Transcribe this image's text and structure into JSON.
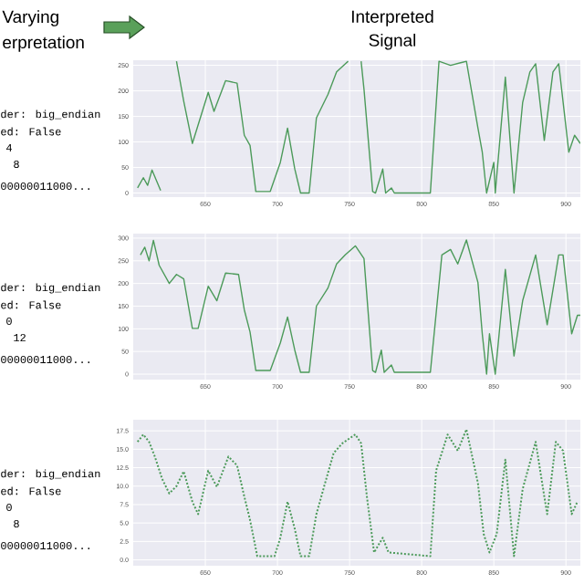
{
  "chart_data": [
    {
      "type": "line",
      "title": "Interpreted Signal",
      "annotations": [
        "Varying",
        "erpretation",
        "der: big_endian",
        "ed: False",
        "4",
        "8",
        "00000011000..."
      ],
      "x": [
        603,
        607,
        610,
        613,
        616,
        619,
        620,
        630,
        635,
        641,
        652,
        656,
        664,
        672,
        677,
        681,
        685,
        695,
        702,
        707,
        712,
        716,
        722,
        727,
        735,
        741,
        747,
        749,
        750,
        758,
        760,
        766,
        768,
        773,
        775,
        779,
        781,
        806,
        812,
        820,
        827,
        831,
        839,
        842,
        845,
        850,
        851,
        858,
        864,
        870,
        875,
        879,
        885,
        891,
        895,
        902,
        906,
        910
      ],
      "series": [
        {
          "color": "#4c9a5a",
          "values": [
            10,
            30,
            15,
            45,
            25,
            5,
            null,
            258,
            180,
            97,
            197,
            160,
            220,
            215,
            113,
            93,
            3,
            3,
            60,
            127,
            47,
            0,
            0,
            147,
            193,
            237,
            253,
            258,
            null,
            258,
            203,
            3,
            0,
            47,
            0,
            10,
            0,
            0,
            258,
            250,
            255,
            258,
            127,
            80,
            0,
            60,
            0,
            227,
            0,
            177,
            237,
            253,
            103,
            237,
            253,
            80,
            113,
            97
          ]
        }
      ],
      "xlim": [
        600,
        910
      ],
      "ylim": [
        -8,
        260
      ],
      "xticks": [
        650,
        700,
        750,
        800,
        850,
        900
      ],
      "yticks": [
        0,
        50,
        100,
        150,
        200,
        250
      ],
      "grid": true
    },
    {
      "type": "line",
      "annotations": [
        "der: big_endian",
        "ed: False",
        "0",
        "12",
        "00000011000..."
      ],
      "x": [
        605,
        608,
        611,
        614,
        618,
        625,
        630,
        635,
        641,
        645,
        652,
        658,
        664,
        673,
        677,
        681,
        685,
        695,
        702,
        707,
        712,
        716,
        722,
        727,
        735,
        741,
        747,
        754,
        760,
        766,
        768,
        772,
        774,
        779,
        781,
        806,
        814,
        820,
        825,
        831,
        839,
        842,
        845,
        847,
        851,
        858,
        864,
        870,
        879,
        887,
        895,
        898,
        904,
        908,
        910
      ],
      "series": [
        {
          "color": "#4c9a5a",
          "values": [
            263,
            280,
            250,
            295,
            240,
            200,
            220,
            210,
            101,
            101,
            194,
            162,
            223,
            220,
            142,
            93,
            8,
            8,
            69,
            126,
            53,
            4,
            4,
            150,
            190,
            243,
            263,
            283,
            255,
            8,
            4,
            53,
            4,
            20,
            4,
            4,
            263,
            275,
            243,
            296,
            202,
            89,
            0,
            89,
            0,
            231,
            40,
            162,
            263,
            109,
            263,
            263,
            89,
            130,
            130
          ]
        }
      ],
      "xlim": [
        600,
        910
      ],
      "ylim": [
        -12,
        310
      ],
      "xticks": [
        650,
        700,
        750,
        800,
        850,
        900
      ],
      "yticks": [
        0,
        50,
        100,
        150,
        200,
        250,
        300
      ],
      "grid": true
    },
    {
      "type": "line",
      "line_style": "dotted",
      "annotations": [
        "der: big_endian",
        "ed: False",
        "0",
        "8",
        "00000011000..."
      ],
      "x": [
        603,
        607,
        611,
        615,
        620,
        625,
        630,
        635,
        641,
        645,
        652,
        658,
        666,
        672,
        677,
        681,
        686,
        698,
        702,
        707,
        712,
        716,
        722,
        727,
        733,
        739,
        745,
        754,
        758,
        762,
        767,
        773,
        777,
        806,
        810,
        818,
        825,
        831,
        839,
        843,
        847,
        852,
        858,
        864,
        870,
        879,
        885,
        887,
        893,
        898,
        904,
        908
      ],
      "series": [
        {
          "color": "#4c9a5a",
          "values": [
            16.0,
            17.0,
            16.0,
            14.0,
            11.0,
            9.0,
            10.0,
            12.0,
            7.9,
            6.2,
            12.1,
            9.9,
            14.0,
            12.8,
            8.6,
            5.4,
            0.5,
            0.5,
            3.0,
            7.9,
            4.2,
            0.5,
            0.5,
            6.2,
            10.4,
            14.5,
            15.8,
            17.0,
            15.8,
            8.6,
            1.0,
            3.0,
            1.0,
            0.5,
            12.1,
            17.0,
            14.8,
            17.7,
            10.4,
            3.5,
            1.0,
            3.5,
            13.6,
            0.5,
            9.6,
            16.0,
            8.6,
            6.2,
            16.0,
            14.8,
            6.2,
            7.9
          ]
        }
      ],
      "xlim": [
        600,
        910
      ],
      "ylim": [
        -0.8,
        19
      ],
      "xticks": [
        650,
        700,
        750,
        800,
        850,
        900
      ],
      "yticks": [
        {
          "value": 0,
          "label": "0.0"
        },
        {
          "value": 2.5,
          "label": "2.5"
        },
        {
          "value": 5,
          "label": "5.0"
        },
        {
          "value": 7.5,
          "label": "7.5"
        },
        {
          "value": 10,
          "label": "10.0"
        },
        {
          "value": 12.5,
          "label": "12.5"
        },
        {
          "value": 15,
          "label": "15.0"
        },
        {
          "value": 17.5,
          "label": "17.5"
        }
      ],
      "grid": true
    }
  ]
}
